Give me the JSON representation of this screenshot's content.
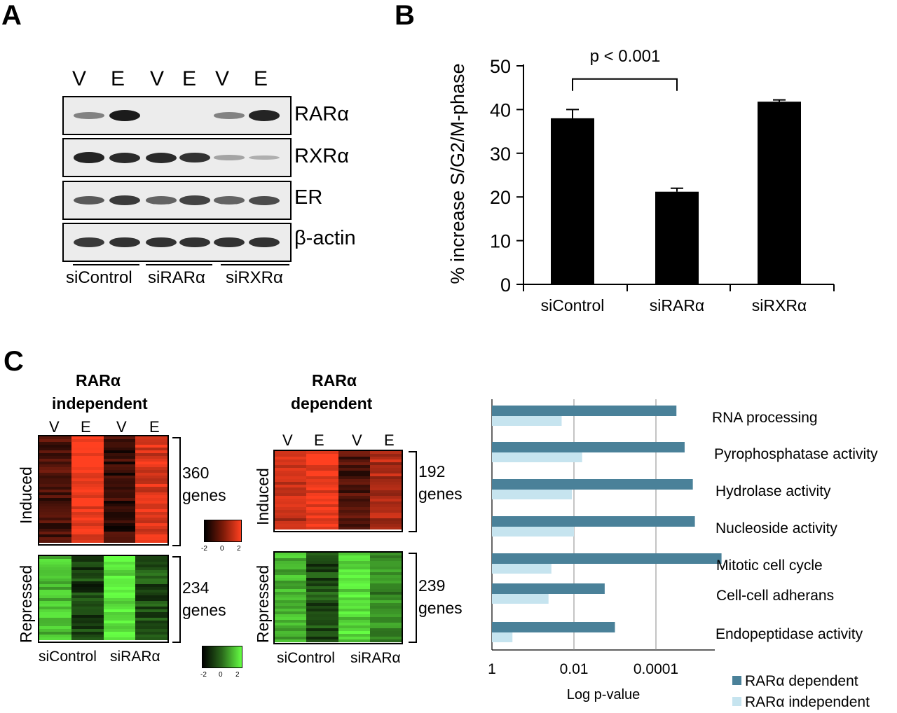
{
  "panels": {
    "a": "A",
    "b": "B",
    "c": "C"
  },
  "panel_a": {
    "lanes": [
      "V",
      "E",
      "V",
      "E",
      "V",
      "E"
    ],
    "blots": [
      {
        "label": "RARα",
        "intensity": [
          0.35,
          1.0,
          0,
          0,
          0.35,
          0.95
        ]
      },
      {
        "label": "RXRα",
        "intensity": [
          0.95,
          0.9,
          0.9,
          0.85,
          0.12,
          0.05
        ]
      },
      {
        "label": "ER",
        "intensity": [
          0.6,
          0.8,
          0.55,
          0.75,
          0.55,
          0.7
        ]
      },
      {
        "label": "β-actin",
        "intensity": [
          0.8,
          0.85,
          0.85,
          0.85,
          0.85,
          0.85
        ]
      }
    ],
    "groups": [
      "siControl",
      "siRARα",
      "siRXRα"
    ]
  },
  "colors": {
    "bar": "#000000",
    "dependent": "#4a8199",
    "independent": "#c6e4ef",
    "red": "#ff4020",
    "green": "#66ff44"
  },
  "chart_data": [
    {
      "type": "bar",
      "categories": [
        "siControl",
        "siRARα",
        "siRXRα"
      ],
      "values": [
        38,
        21.2,
        41.8
      ],
      "errors": [
        2.0,
        0.8,
        0.4
      ],
      "ylabel": "% increase S/G2/M-phase",
      "ylim": [
        0,
        50
      ],
      "yticks": [
        0,
        10,
        20,
        30,
        40,
        50
      ],
      "annotation": "p < 0.001"
    },
    {
      "type": "bar",
      "orientation": "horizontal",
      "categories": [
        "RNA processing",
        "Pyrophosphatase activity",
        "Hydrolase activity",
        "Nucleoside activity",
        "Mitotic cell cycle",
        "Cell-cell adherans",
        "Endopeptidase  activity"
      ],
      "series": [
        {
          "name": "RARα dependent",
          "values": [
            4.5,
            4.7,
            4.9,
            4.95,
            5.6,
            2.75,
            3.0
          ]
        },
        {
          "name": "RARα independent",
          "values": [
            1.7,
            2.2,
            1.95,
            2.0,
            1.45,
            1.38,
            0.5
          ]
        }
      ],
      "xlabel": "Log p-value",
      "xlim": [
        0,
        5.6
      ],
      "xticks": [
        0,
        2,
        4
      ],
      "xticklabels": [
        "1",
        "0.01",
        "0.0001"
      ]
    }
  ],
  "panel_c": {
    "independent": {
      "title_line1": "RARα",
      "title_line2": "independent",
      "lanes": [
        "V",
        "E",
        "V",
        "E"
      ],
      "induced_label": "Induced",
      "repressed_label": "Repressed",
      "induced_count": "360",
      "repressed_count": "234",
      "genes_word": "genes",
      "group1": "siControl",
      "group2": "siRARα"
    },
    "dependent": {
      "title_line1": "RARα",
      "title_line2": "dependent",
      "lanes": [
        "V",
        "E",
        "V",
        "E"
      ],
      "induced_label": "Induced",
      "repressed_label": "Repressed",
      "induced_count": "192",
      "repressed_count": "239",
      "genes_word": "genes",
      "group1": "siControl",
      "group2": "siRARα"
    },
    "scale_red": {
      "ticks": [
        "-2",
        "0",
        "2"
      ]
    },
    "scale_green": {
      "ticks": [
        "-2",
        "0",
        "2"
      ]
    }
  }
}
